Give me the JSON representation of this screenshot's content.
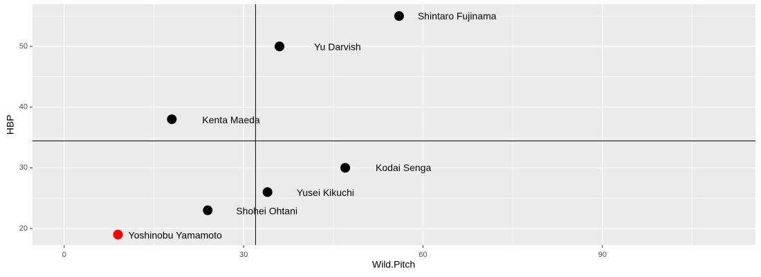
{
  "chart_data": {
    "type": "scatter",
    "x_label": "Wild.Pitch",
    "y_label": "HBP",
    "labels": [
      "Shintaro Fujinama",
      "Yu Darvish",
      "Kenta Maeda",
      "Kodai Senga",
      "Yusei Kikuchi",
      "Shohei Ohtani",
      "Yoshinobu Yamamoto"
    ],
    "x": [
      56,
      36,
      18,
      47,
      34,
      24,
      9
    ],
    "values": [
      55,
      50,
      38,
      30,
      26,
      23,
      19
    ],
    "colors": [
      "#000000",
      "#000000",
      "#000000",
      "#000000",
      "#000000",
      "#000000",
      "#ff0000"
    ],
    "vline": 32,
    "hline": 34.43,
    "xlim": [
      -5.3,
      115.6
    ],
    "ylim": [
      17.26,
      56.96
    ],
    "xticks": [
      0,
      30,
      60,
      90
    ],
    "yticks": [
      20,
      30,
      40,
      50
    ],
    "grid": true
  }
}
